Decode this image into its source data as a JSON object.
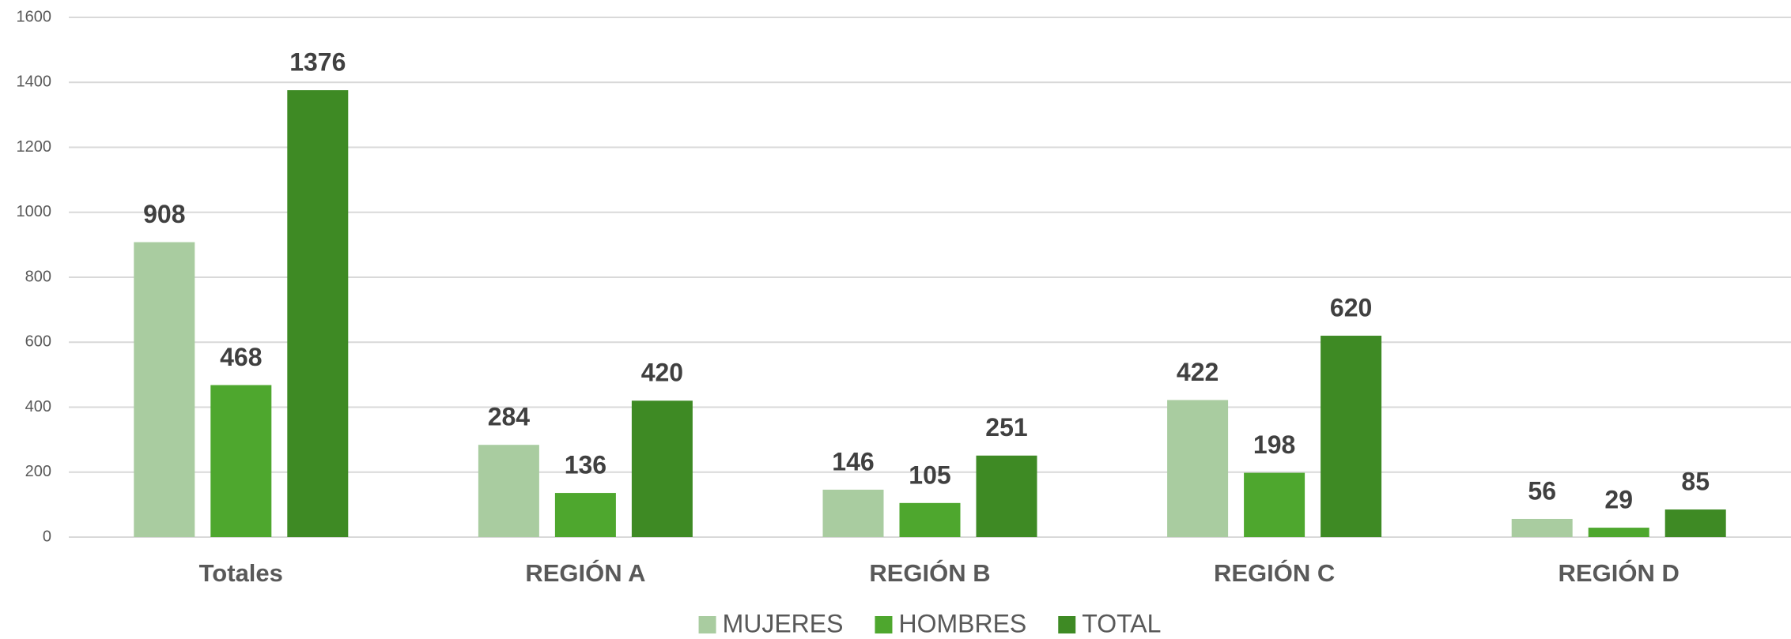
{
  "chart_data": {
    "type": "bar",
    "categories": [
      "Totales",
      "REGIÓN A",
      "REGIÓN B",
      "REGIÓN C",
      "REGIÓN D"
    ],
    "series": [
      {
        "name": "MUJERES",
        "color": "#a9cca0",
        "values": [
          908,
          284,
          146,
          422,
          56
        ]
      },
      {
        "name": "HOMBRES",
        "color": "#4ea72e",
        "values": [
          468,
          136,
          105,
          198,
          29
        ]
      },
      {
        "name": "TOTAL",
        "color": "#3e8a24",
        "values": [
          1376,
          420,
          251,
          620,
          85
        ]
      }
    ],
    "ylim": [
      0,
      1600
    ],
    "yticks": [
      0,
      200,
      400,
      600,
      800,
      1000,
      1200,
      1400,
      1600
    ],
    "grid": true,
    "legend": "bottom"
  }
}
